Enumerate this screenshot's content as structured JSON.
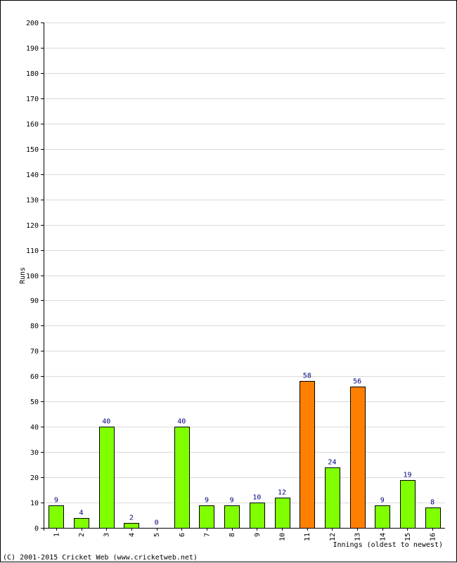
{
  "chart_data": {
    "type": "bar",
    "title": "",
    "xlabel": "Innings (oldest to newest)",
    "ylabel": "Runs",
    "ylim": [
      0,
      200
    ],
    "ytick_step": 10,
    "grid": true,
    "categories": [
      "1",
      "2",
      "3",
      "4",
      "5",
      "6",
      "7",
      "8",
      "9",
      "10",
      "11",
      "12",
      "13",
      "14",
      "15",
      "16"
    ],
    "values": [
      9,
      4,
      40,
      2,
      0,
      40,
      9,
      9,
      10,
      12,
      58,
      24,
      56,
      9,
      19,
      8
    ],
    "bar_colors": [
      "#80ff00",
      "#80ff00",
      "#80ff00",
      "#80ff00",
      "#80ff00",
      "#80ff00",
      "#80ff00",
      "#80ff00",
      "#80ff00",
      "#80ff00",
      "#ff8000",
      "#80ff00",
      "#ff8000",
      "#80ff00",
      "#80ff00",
      "#80ff00"
    ],
    "label_color": "#000080",
    "grid_color": "#d9d9d9"
  },
  "footer": {
    "copyright": "(C) 2001-2015 Cricket Web (www.cricketweb.net)"
  }
}
